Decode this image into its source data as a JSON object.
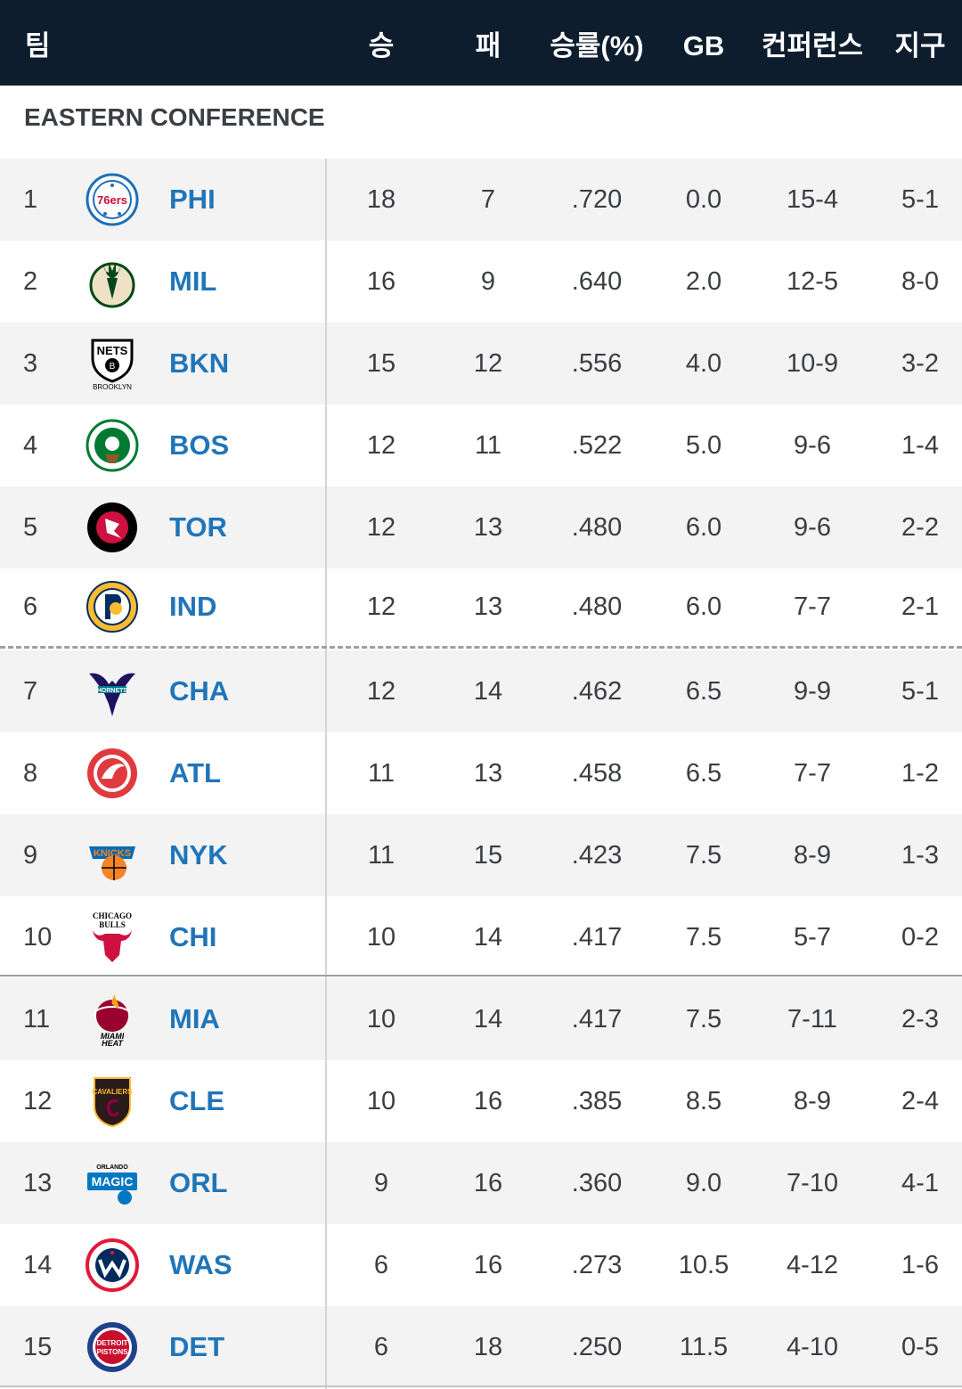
{
  "header": {
    "team": "팀",
    "wins": "승",
    "losses": "패",
    "pct": "승률(%)",
    "gb": "GB",
    "conference": "컨퍼런스",
    "division": "지구"
  },
  "conference_title": "EASTERN CONFERENCE",
  "colors": {
    "header_bg": "#0e1d2e",
    "team_link": "#1f75b9",
    "row_shade": "#f3f3f3"
  },
  "teams": [
    {
      "rank": "1",
      "abbr": "PHI",
      "w": "18",
      "l": "7",
      "pct": ".720",
      "gb": "0.0",
      "conf": "15-4",
      "div": "5-1",
      "logo": "sixers-logo",
      "logo_text": "76ers"
    },
    {
      "rank": "2",
      "abbr": "MIL",
      "w": "16",
      "l": "9",
      "pct": ".640",
      "gb": "2.0",
      "conf": "12-5",
      "div": "8-0",
      "logo": "bucks-logo",
      "logo_text": ""
    },
    {
      "rank": "3",
      "abbr": "BKN",
      "w": "15",
      "l": "12",
      "pct": ".556",
      "gb": "4.0",
      "conf": "10-9",
      "div": "3-2",
      "logo": "nets-logo",
      "logo_text": "NETS"
    },
    {
      "rank": "4",
      "abbr": "BOS",
      "w": "12",
      "l": "11",
      "pct": ".522",
      "gb": "5.0",
      "conf": "9-6",
      "div": "1-4",
      "logo": "celtics-logo",
      "logo_text": ""
    },
    {
      "rank": "5",
      "abbr": "TOR",
      "w": "12",
      "l": "13",
      "pct": ".480",
      "gb": "6.0",
      "conf": "9-6",
      "div": "2-2",
      "logo": "raptors-logo",
      "logo_text": ""
    },
    {
      "rank": "6",
      "abbr": "IND",
      "w": "12",
      "l": "13",
      "pct": ".480",
      "gb": "6.0",
      "conf": "7-7",
      "div": "2-1",
      "logo": "pacers-logo",
      "logo_text": ""
    },
    {
      "rank": "7",
      "abbr": "CHA",
      "w": "12",
      "l": "14",
      "pct": ".462",
      "gb": "6.5",
      "conf": "9-9",
      "div": "5-1",
      "logo": "hornets-logo",
      "logo_text": ""
    },
    {
      "rank": "8",
      "abbr": "ATL",
      "w": "11",
      "l": "13",
      "pct": ".458",
      "gb": "6.5",
      "conf": "7-7",
      "div": "1-2",
      "logo": "hawks-logo",
      "logo_text": ""
    },
    {
      "rank": "9",
      "abbr": "NYK",
      "w": "11",
      "l": "15",
      "pct": ".423",
      "gb": "7.5",
      "conf": "8-9",
      "div": "1-3",
      "logo": "knicks-logo",
      "logo_text": ""
    },
    {
      "rank": "10",
      "abbr": "CHI",
      "w": "10",
      "l": "14",
      "pct": ".417",
      "gb": "7.5",
      "conf": "5-7",
      "div": "0-2",
      "logo": "bulls-logo",
      "logo_text": ""
    },
    {
      "rank": "11",
      "abbr": "MIA",
      "w": "10",
      "l": "14",
      "pct": ".417",
      "gb": "7.5",
      "conf": "7-11",
      "div": "2-3",
      "logo": "heat-logo",
      "logo_text": ""
    },
    {
      "rank": "12",
      "abbr": "CLE",
      "w": "10",
      "l": "16",
      "pct": ".385",
      "gb": "8.5",
      "conf": "8-9",
      "div": "2-4",
      "logo": "cavaliers-logo",
      "logo_text": ""
    },
    {
      "rank": "13",
      "abbr": "ORL",
      "w": "9",
      "l": "16",
      "pct": ".360",
      "gb": "9.0",
      "conf": "7-10",
      "div": "4-1",
      "logo": "magic-logo",
      "logo_text": ""
    },
    {
      "rank": "14",
      "abbr": "WAS",
      "w": "6",
      "l": "16",
      "pct": ".273",
      "gb": "10.5",
      "conf": "4-12",
      "div": "1-6",
      "logo": "wizards-logo",
      "logo_text": ""
    },
    {
      "rank": "15",
      "abbr": "DET",
      "w": "6",
      "l": "18",
      "pct": ".250",
      "gb": "11.5",
      "conf": "4-10",
      "div": "0-5",
      "logo": "pistons-logo",
      "logo_text": ""
    }
  ]
}
